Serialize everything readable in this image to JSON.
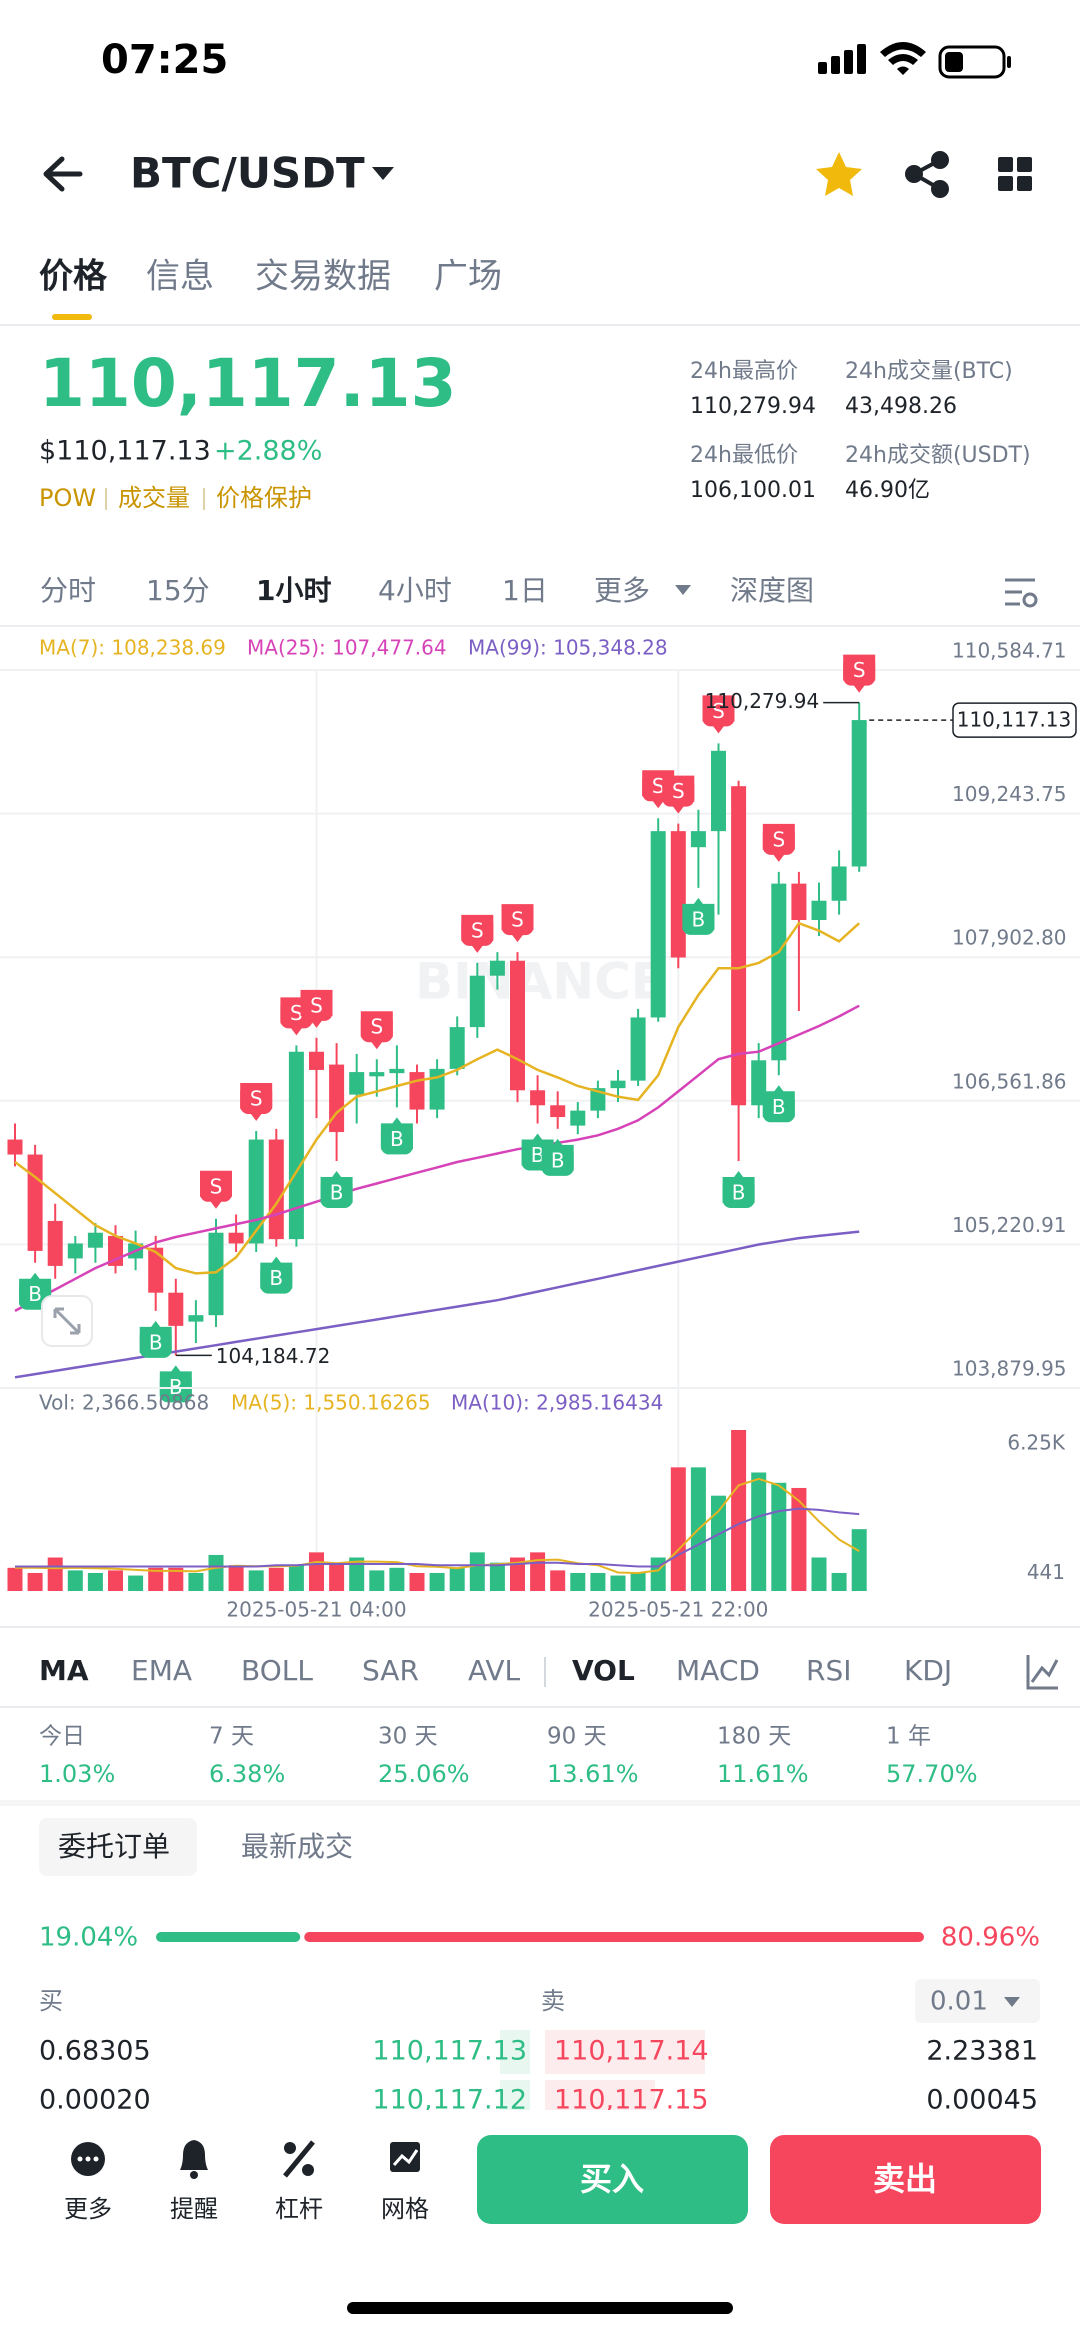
{
  "status": {
    "time": "07:25"
  },
  "header": {
    "pair": "BTC/USDT"
  },
  "tabs": [
    "价格",
    "信息",
    "交易数据",
    "广场"
  ],
  "price": {
    "last": "110,117.13",
    "usd": "$110,117.13",
    "change": "+2.88%",
    "tags": [
      "POW",
      "成交量",
      "价格保护"
    ]
  },
  "stats": [
    {
      "label": "24h最高价",
      "value": "110,279.94"
    },
    {
      "label": "24h成交量(BTC)",
      "value": "43,498.26"
    },
    {
      "label": "24h最低价",
      "value": "106,100.01"
    },
    {
      "label": "24h成交额(USDT)",
      "value": "46.90亿"
    }
  ],
  "intervals": [
    "分时",
    "15分",
    "1小时",
    "4小时",
    "1日",
    "更多",
    "深度图"
  ],
  "chart_data": {
    "type": "candlestick",
    "watermark": "BINANCE",
    "up_color": "#2ebd85",
    "down_color": "#f6465d",
    "grid": true,
    "ylim": [
      103879.95,
      110584.71
    ],
    "yticks": [
      {
        "value": 103879.95,
        "label": "103,879.95"
      },
      {
        "value": 105220.91,
        "label": "105,220.91"
      },
      {
        "value": 106561.86,
        "label": "106,561.86"
      },
      {
        "value": 107902.8,
        "label": "107,902.80"
      },
      {
        "value": 109243.75,
        "label": "109,243.75"
      },
      {
        "value": 110584.71,
        "label": "110,584.71"
      }
    ],
    "categories": [
      null,
      null,
      null,
      null,
      null,
      null,
      null,
      null,
      null,
      null,
      null,
      null,
      null,
      null,
      null,
      "2025-05-21 04:00",
      null,
      null,
      null,
      null,
      null,
      null,
      null,
      null,
      null,
      null,
      null,
      null,
      null,
      null,
      null,
      null,
      null,
      "2025-05-21 22:00",
      null,
      null,
      null,
      null,
      null,
      null,
      null,
      null,
      null
    ],
    "open": [
      106200,
      106060,
      105440,
      105090,
      105190,
      105300,
      105090,
      105190,
      104770,
      104500,
      104560,
      105330,
      105230,
      106200,
      105270,
      107020,
      106900,
      106620,
      106790,
      106820,
      106830,
      106480,
      106860,
      107250,
      107730,
      107870,
      106660,
      106520,
      106330,
      106470,
      106680,
      106750,
      107340,
      109080,
      108930,
      109080,
      109500,
      106520,
      106940,
      108590,
      108250,
      108430,
      108750
    ],
    "high": [
      106350,
      106150,
      105600,
      105300,
      105420,
      105400,
      105350,
      105300,
      104900,
      104700,
      105460,
      105500,
      106280,
      106300,
      107080,
      107150,
      107100,
      107000,
      106950,
      107080,
      106900,
      106950,
      107350,
      107850,
      107950,
      107950,
      106800,
      106650,
      106550,
      106750,
      106850,
      107420,
      109200,
      109150,
      109280,
      109900,
      109550,
      107100,
      108700,
      108700,
      108600,
      108900,
      110279.94
    ],
    "low": [
      105950,
      105050,
      104900,
      104950,
      105050,
      104950,
      104980,
      104600,
      104184.72,
      104300,
      104450,
      105150,
      105150,
      105200,
      105200,
      106400,
      106000,
      106350,
      106600,
      106500,
      106350,
      106400,
      106800,
      107150,
      107600,
      106550,
      106350,
      106300,
      106250,
      106400,
      106550,
      106700,
      107300,
      107800,
      108550,
      108300,
      106000,
      106400,
      106800,
      107400,
      108100,
      108300,
      108700
    ],
    "close": [
      106060,
      105160,
      105020,
      105230,
      105330,
      105020,
      105230,
      104770,
      104460,
      104560,
      105330,
      105230,
      106200,
      105270,
      107020,
      106850,
      106270,
      106830,
      106830,
      106860,
      106480,
      106860,
      107250,
      107730,
      107870,
      106660,
      106520,
      106410,
      106470,
      106680,
      106750,
      107340,
      109080,
      107900,
      109080,
      109830,
      106520,
      106940,
      108590,
      108250,
      108430,
      108750,
      110117.13
    ],
    "series": [
      {
        "name": "MA(7): 108,238.69",
        "color": "#e6b422",
        "values": [
          105990,
          105850,
          105700,
          105550,
          105400,
          105300,
          105230,
          105150,
          105000,
          104950,
          104960,
          105100,
          105350,
          105600,
          105900,
          106200,
          106450,
          106600,
          106650,
          106700,
          106750,
          106780,
          106850,
          106950,
          107040,
          106950,
          106850,
          106780,
          106700,
          106650,
          106600,
          106570,
          106800,
          107250,
          107550,
          107800,
          107800,
          107850,
          107950,
          108220,
          108150,
          108050,
          108220
        ]
      },
      {
        "name": "MA(25): 107,477.64",
        "color": "#d643b8",
        "values": [
          104600,
          104700,
          104800,
          104900,
          105000,
          105080,
          105160,
          105240,
          105290,
          105330,
          105370,
          105410,
          105450,
          105500,
          105560,
          105620,
          105680,
          105740,
          105790,
          105840,
          105890,
          105940,
          105990,
          106030,
          106070,
          106110,
          106140,
          106170,
          106200,
          106240,
          106300,
          106380,
          106500,
          106650,
          106800,
          106950,
          107000,
          107020,
          107100,
          107180,
          107260,
          107350,
          107450
        ]
      },
      {
        "name": "MA(99): 105,348.28",
        "color": "#7b5fc4",
        "values": [
          103980,
          104010,
          104040,
          104070,
          104100,
          104130,
          104160,
          104190,
          104220,
          104250,
          104280,
          104310,
          104340,
          104370,
          104400,
          104430,
          104460,
          104490,
          104520,
          104550,
          104580,
          104610,
          104640,
          104670,
          104700,
          104740,
          104780,
          104820,
          104860,
          104900,
          104940,
          104980,
          105020,
          105060,
          105100,
          105140,
          105180,
          105220,
          105250,
          105280,
          105300,
          105320,
          105340
        ]
      }
    ],
    "last_price": {
      "value": 110117.13,
      "label": "110,117.13"
    },
    "high_label": {
      "value": 110279.94,
      "label": "110,279.94"
    },
    "low_label": {
      "value": 104184.72,
      "label": "104,184.72"
    },
    "sell_markers": {
      "label": "S",
      "indices": [
        10,
        12,
        14,
        15,
        18,
        23,
        25,
        32,
        33,
        35,
        38,
        42
      ]
    },
    "buy_markers": {
      "label": "B",
      "indices": [
        1,
        7,
        8,
        13,
        16,
        19,
        26,
        27,
        34,
        36,
        38
      ]
    },
    "volume": {
      "legend": "Vol: 2,366.50868",
      "ylim": [
        0,
        6250
      ],
      "yticks": [
        441,
        {
          "value": 6250,
          "label": "6.25K"
        }
      ],
      "values": [
        900,
        700,
        1300,
        800,
        700,
        800,
        600,
        900,
        900,
        700,
        1400,
        1000,
        800,
        900,
        1000,
        1500,
        1100,
        1300,
        800,
        900,
        700,
        700,
        900,
        1500,
        1100,
        1300,
        1500,
        800,
        700,
        700,
        600,
        700,
        1300,
        4800,
        4800,
        3700,
        6250,
        4600,
        4200,
        4000,
        1300,
        700,
        2400
      ],
      "series": [
        {
          "name": "MA(5): 1,550.16265",
          "color": "#e6b422",
          "values": [
            900,
            900,
            880,
            900,
            880,
            860,
            820,
            780,
            780,
            760,
            900,
            980,
            960,
            960,
            980,
            1130,
            1080,
            1140,
            1140,
            1120,
            960,
            940,
            880,
            1000,
            1040,
            1100,
            1200,
            1220,
            1080,
            1000,
            720,
            700,
            800,
            1600,
            2400,
            3100,
            4100,
            4350,
            4100,
            3500,
            2700,
            2000,
            1550
          ]
        },
        {
          "name": "MA(10): 2,985.16434",
          "color": "#7b5fc4",
          "values": [
            950,
            950,
            950,
            950,
            950,
            950,
            950,
            950,
            950,
            950,
            950,
            950,
            950,
            1000,
            1000,
            1050,
            1050,
            1050,
            1050,
            1050,
            1050,
            1000,
            1000,
            1000,
            1000,
            1050,
            1100,
            1100,
            1050,
            1050,
            1000,
            950,
            950,
            1400,
            1800,
            2200,
            2600,
            2900,
            3100,
            3200,
            3150,
            3050,
            2985
          ]
        }
      ]
    }
  },
  "indicators": [
    "MA",
    "EMA",
    "BOLL",
    "SAR",
    "AVL",
    "VOL",
    "MACD",
    "RSI",
    "KDJ"
  ],
  "performance": [
    {
      "label": "今日",
      "value": "1.03%"
    },
    {
      "label": "7 天",
      "value": "6.38%"
    },
    {
      "label": "30 天",
      "value": "25.06%"
    },
    {
      "label": "90 天",
      "value": "13.61%"
    },
    {
      "label": "180 天",
      "value": "11.61%"
    },
    {
      "label": "1 年",
      "value": "57.70%"
    }
  ],
  "order_tabs": [
    "委托订单",
    "最新成交"
  ],
  "ratio": {
    "buy": {
      "value": 19.04,
      "label": "19.04%"
    },
    "sell": {
      "value": 80.96,
      "label": "80.96%"
    }
  },
  "book": {
    "buy_label": "买",
    "sell_label": "卖",
    "precision": "0.01",
    "rows": [
      [
        "0.68305",
        "110,117.13",
        "110,117.14",
        "2.23381"
      ],
      [
        "0.00020",
        "110,117.12",
        "110,117.15",
        "0.00045"
      ]
    ]
  },
  "bottom": {
    "items": [
      "更多",
      "提醒",
      "杠杆",
      "网格"
    ],
    "buy": "买入",
    "sell": "卖出"
  }
}
